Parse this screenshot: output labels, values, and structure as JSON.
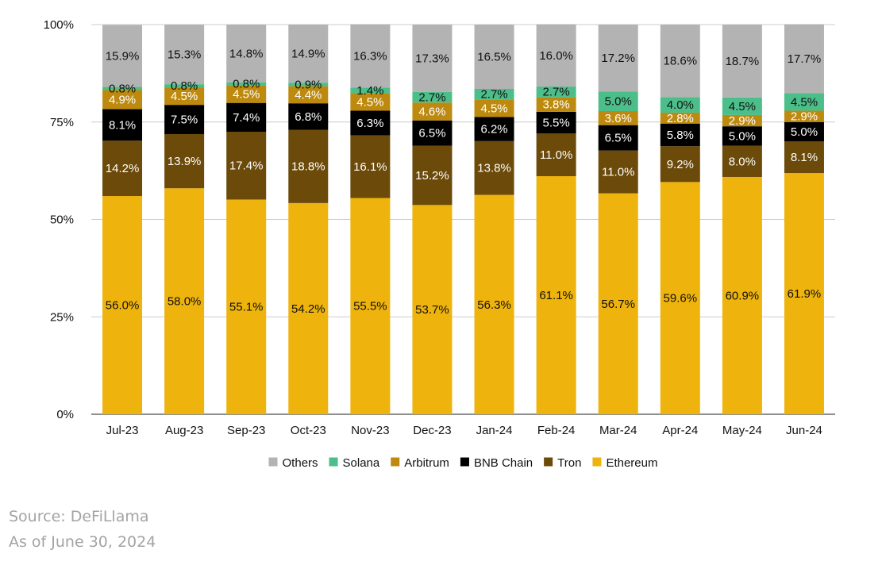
{
  "chart_data": {
    "type": "bar",
    "stacked": true,
    "title": "",
    "xlabel": "",
    "ylabel": "",
    "ylim": [
      0,
      100
    ],
    "y_ticks": [
      "0%",
      "25%",
      "50%",
      "75%",
      "100%"
    ],
    "y_tick_values": [
      0,
      25,
      50,
      75,
      100
    ],
    "grid": true,
    "legend_position": "bottom-center",
    "legend_order": [
      "Others",
      "Solana",
      "Arbitrum",
      "BNB Chain",
      "Tron",
      "Ethereum"
    ],
    "categories": [
      "Jul-23",
      "Aug-23",
      "Sep-23",
      "Oct-23",
      "Nov-23",
      "Dec-23",
      "Jan-24",
      "Feb-24",
      "Mar-24",
      "Apr-24",
      "May-24",
      "Jun-24"
    ],
    "series": [
      {
        "name": "Ethereum",
        "color": "#eeb30c",
        "text_color": "#111111",
        "values": [
          56.0,
          58.0,
          55.1,
          54.2,
          55.5,
          53.7,
          56.3,
          61.1,
          56.7,
          59.6,
          60.9,
          61.9
        ]
      },
      {
        "name": "Tron",
        "color": "#6b4a0a",
        "text_color": "#ffffff",
        "values": [
          14.2,
          13.9,
          17.4,
          18.8,
          16.1,
          15.2,
          13.8,
          11.0,
          11.0,
          9.2,
          8.0,
          8.1
        ]
      },
      {
        "name": "BNB Chain",
        "color": "#000000",
        "text_color": "#ffffff",
        "values": [
          8.1,
          7.5,
          7.4,
          6.8,
          6.3,
          6.5,
          6.2,
          5.5,
          6.5,
          5.8,
          5.0,
          5.0
        ]
      },
      {
        "name": "Arbitrum",
        "color": "#bd8a0f",
        "text_color": "#ffffff",
        "values": [
          4.9,
          4.5,
          4.5,
          4.4,
          4.5,
          4.6,
          4.5,
          3.8,
          3.6,
          2.8,
          2.9,
          2.9
        ]
      },
      {
        "name": "Solana",
        "color": "#4cbe8a",
        "text_color": "#111111",
        "values": [
          0.8,
          0.8,
          0.8,
          0.9,
          1.4,
          2.7,
          2.7,
          2.7,
          5.0,
          4.0,
          4.5,
          4.5
        ]
      },
      {
        "name": "Others",
        "color": "#b3b3b3",
        "text_color": "#111111",
        "values": [
          15.9,
          15.3,
          14.8,
          14.9,
          16.3,
          17.3,
          16.5,
          16.0,
          17.2,
          18.6,
          18.7,
          17.7
        ]
      }
    ],
    "labels": [
      [
        "56.0%",
        "58.0%",
        "55.1%",
        "54.2%",
        "55.5%",
        "53.7%",
        "56.3%",
        "61.1%",
        "56.7%",
        "59.6%",
        "60.9%",
        "61.9%"
      ],
      [
        "14.2%",
        "13.9%",
        "17.4%",
        "18.8%",
        "16.1%",
        "15.2%",
        "13.8%",
        "11.0%",
        "11.0%",
        "9.2%",
        "8.0%",
        "8.1%"
      ],
      [
        "8.1%",
        "7.5%",
        "7.4%",
        "6.8%",
        "6.3%",
        "6.5%",
        "6.2%",
        "5.5%",
        "6.5%",
        "5.8%",
        "5.0%",
        "5.0%"
      ],
      [
        "4.9%",
        "4.5%",
        "4.5%",
        "4.4%",
        "4.5%",
        "4.6%",
        "4.5%",
        "3.8%",
        "3.6%",
        "2.8%",
        "2.9%",
        "2.9%"
      ],
      [
        "0.8%",
        "0.8%",
        "0.8%",
        "0.9%",
        "1.4%",
        "2.7%",
        "2.7%",
        "2.7%",
        "5.0%",
        "4.0%",
        "4.5%",
        "4.5%"
      ],
      [
        "15.9%",
        "15.3%",
        "14.8%",
        "14.9%",
        "16.3%",
        "17.3%",
        "16.5%",
        "16.0%",
        "17.2%",
        "18.6%",
        "18.7%",
        "17.7%"
      ]
    ]
  },
  "footer": {
    "source": "Source: DeFiLlama",
    "as_of": "As of June 30, 2024"
  }
}
